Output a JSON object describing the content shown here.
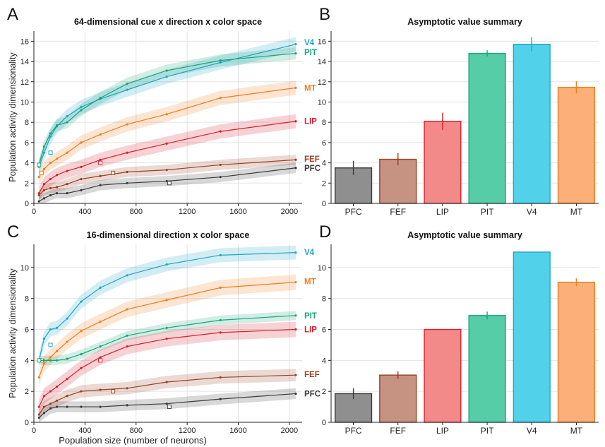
{
  "colors": {
    "PFC": "#3a3a3a",
    "FEF": "#9b3f22",
    "LIP": "#d8202e",
    "PIT": "#17a67a",
    "V4": "#1fa6c9",
    "MT": "#ef7d1c"
  },
  "bar_fill": {
    "PFC": "#8f8f8f",
    "FEF": "#c69383",
    "LIP": "#f28a8a",
    "PIT": "#56cda6",
    "V4": "#52d2ea",
    "MT": "#fdaf7a"
  },
  "shared_xlabel": "Population size (number of neurons)",
  "chart_data": [
    {
      "panel": "A",
      "type": "line",
      "title": "64-dimensional cue x direction x color space",
      "xlabel": "",
      "ylabel": "Population activity dimensionality",
      "xlim": [
        0,
        2100
      ],
      "ylim": [
        0,
        17
      ],
      "xticks": [
        0,
        400,
        800,
        1200,
        1600,
        2000
      ],
      "yticks": [
        0,
        2,
        4,
        6,
        8,
        10,
        12,
        14,
        16
      ],
      "grid": true,
      "series": [
        {
          "name": "V4",
          "label_y": 15.9,
          "x": [
            40,
            80,
            130,
            180,
            260,
            370,
            520,
            730,
            1040,
            1460,
            2050
          ],
          "y": [
            3.6,
            5.0,
            6.6,
            7.6,
            8.6,
            9.5,
            10.3,
            11.2,
            12.5,
            13.9,
            15.7
          ],
          "band": 0.7,
          "marker": {
            "x": 130,
            "y": 5.0
          }
        },
        {
          "name": "PIT",
          "label_y": 14.9,
          "x": [
            40,
            80,
            130,
            180,
            260,
            370,
            520,
            730,
            1040,
            1460,
            2050
          ],
          "y": [
            3.8,
            5.6,
            6.9,
            7.7,
            8.0,
            9.2,
            10.4,
            11.8,
            13.1,
            14.1,
            14.8
          ],
          "band": 0.6,
          "marker": {
            "x": 40,
            "y": 3.8
          }
        },
        {
          "name": "MT",
          "label_y": 11.4,
          "x": [
            40,
            80,
            130,
            180,
            260,
            370,
            520,
            730,
            1040,
            1460,
            2050
          ],
          "y": [
            2.6,
            3.4,
            4.0,
            4.4,
            5.0,
            6.0,
            6.8,
            7.8,
            8.8,
            10.4,
            11.4
          ],
          "band": 0.7,
          "marker": {
            "x": 60,
            "y": 3.0
          }
        },
        {
          "name": "LIP",
          "label_y": 8.1,
          "x": [
            40,
            80,
            130,
            180,
            260,
            370,
            520,
            730,
            1040,
            1460,
            2050
          ],
          "y": [
            1.0,
            1.9,
            2.4,
            2.8,
            3.2,
            3.6,
            4.3,
            5.0,
            5.9,
            7.1,
            8.1
          ],
          "band": 0.7,
          "marker": {
            "x": 520,
            "y": 4.0
          }
        },
        {
          "name": "FEF",
          "label_y": 4.4,
          "x": [
            40,
            80,
            130,
            180,
            260,
            370,
            520,
            730,
            1040,
            1460,
            2050
          ],
          "y": [
            0.8,
            1.3,
            1.5,
            1.6,
            1.9,
            2.4,
            2.7,
            3.1,
            3.3,
            3.8,
            4.3
          ],
          "band": 0.5,
          "marker": {
            "x": 620,
            "y": 3.0
          }
        },
        {
          "name": "PFC",
          "label_y": 3.5,
          "x": [
            40,
            80,
            130,
            180,
            260,
            370,
            520,
            730,
            1040,
            1460,
            2050
          ],
          "y": [
            0.2,
            0.5,
            0.8,
            1.0,
            1.0,
            1.3,
            1.8,
            2.0,
            2.2,
            2.6,
            3.5
          ],
          "band": 0.5,
          "marker": {
            "x": 1060,
            "y": 2.0
          }
        }
      ]
    },
    {
      "panel": "B",
      "type": "bar",
      "title": "Asymptotic value summary",
      "categories": [
        "PFC",
        "FEF",
        "LIP",
        "PIT",
        "V4",
        "MT"
      ],
      "values": [
        3.5,
        4.35,
        8.1,
        14.8,
        15.7,
        11.45
      ],
      "errors": [
        0.7,
        0.6,
        0.85,
        0.3,
        0.7,
        0.6
      ],
      "ylim": [
        0,
        17
      ],
      "yticks": [
        0,
        2,
        4,
        6,
        8,
        10,
        12,
        14,
        16
      ],
      "grid": true
    },
    {
      "panel": "C",
      "type": "line",
      "title": "16-dimensional direction x color space",
      "xlabel": "Population size (number of neurons)",
      "ylabel": "Population activity dimensionality",
      "xlim": [
        0,
        2100
      ],
      "ylim": [
        0,
        11.5
      ],
      "xticks": [
        0,
        400,
        800,
        1200,
        1600,
        2000
      ],
      "yticks": [
        0,
        2,
        4,
        6,
        8,
        10
      ],
      "grid": true,
      "series": [
        {
          "name": "V4",
          "label_y": 11.0,
          "x": [
            40,
            80,
            130,
            180,
            260,
            370,
            520,
            730,
            1040,
            1460,
            2050
          ],
          "y": [
            4.0,
            5.4,
            6.0,
            6.1,
            6.7,
            7.8,
            8.7,
            9.5,
            10.2,
            10.8,
            10.97
          ],
          "band": 0.45,
          "marker": {
            "x": 130,
            "y": 5.0
          }
        },
        {
          "name": "MT",
          "label_y": 9.1,
          "x": [
            40,
            80,
            130,
            180,
            260,
            370,
            520,
            730,
            1040,
            1460,
            2050
          ],
          "y": [
            2.9,
            3.8,
            4.2,
            4.6,
            5.2,
            5.9,
            6.5,
            7.3,
            7.9,
            8.7,
            9.05
          ],
          "band": 0.5,
          "marker": {
            "x": 60,
            "y": 4.0
          }
        },
        {
          "name": "PIT",
          "label_y": 6.9,
          "x": [
            40,
            80,
            130,
            180,
            260,
            370,
            520,
            730,
            1040,
            1460,
            2050
          ],
          "y": [
            4.0,
            4.0,
            4.0,
            4.0,
            4.1,
            4.4,
            4.9,
            5.6,
            6.1,
            6.6,
            6.9
          ],
          "band": 0.3,
          "marker": {
            "x": 40,
            "y": 4.0
          }
        },
        {
          "name": "LIP",
          "label_y": 6.0,
          "x": [
            40,
            80,
            130,
            180,
            260,
            370,
            520,
            730,
            1040,
            1460,
            2050
          ],
          "y": [
            1.0,
            1.7,
            2.0,
            2.3,
            2.8,
            3.5,
            4.2,
            4.9,
            5.4,
            5.8,
            6.0
          ],
          "band": 0.5,
          "marker": {
            "x": 520,
            "y": 4.0
          }
        },
        {
          "name": "FEF",
          "label_y": 3.1,
          "x": [
            40,
            80,
            130,
            180,
            260,
            370,
            520,
            730,
            1040,
            1460,
            2050
          ],
          "y": [
            0.5,
            1.0,
            1.2,
            1.4,
            1.7,
            2.0,
            2.1,
            2.2,
            2.6,
            2.9,
            3.05
          ],
          "band": 0.4,
          "marker": {
            "x": 620,
            "y": 2.0
          }
        },
        {
          "name": "PFC",
          "label_y": 1.85,
          "x": [
            40,
            80,
            130,
            180,
            260,
            370,
            520,
            730,
            1040,
            1460,
            2050
          ],
          "y": [
            0.3,
            0.6,
            0.9,
            1.0,
            1.0,
            1.0,
            1.0,
            1.1,
            1.2,
            1.5,
            1.85
          ],
          "band": 0.35,
          "marker": {
            "x": 1060,
            "y": 1.0
          }
        }
      ]
    },
    {
      "panel": "D",
      "type": "bar",
      "title": "Asymptotic value summary",
      "categories": [
        "PFC",
        "FEF",
        "LIP",
        "PIT",
        "V4",
        "MT"
      ],
      "values": [
        1.85,
        3.05,
        6.0,
        6.9,
        11.0,
        9.05
      ],
      "errors": [
        0.35,
        0.25,
        0.0,
        0.25,
        0.0,
        0.25
      ],
      "ylim": [
        0,
        11.5
      ],
      "yticks": [
        0,
        2,
        4,
        6,
        8,
        10
      ],
      "grid": true
    }
  ]
}
